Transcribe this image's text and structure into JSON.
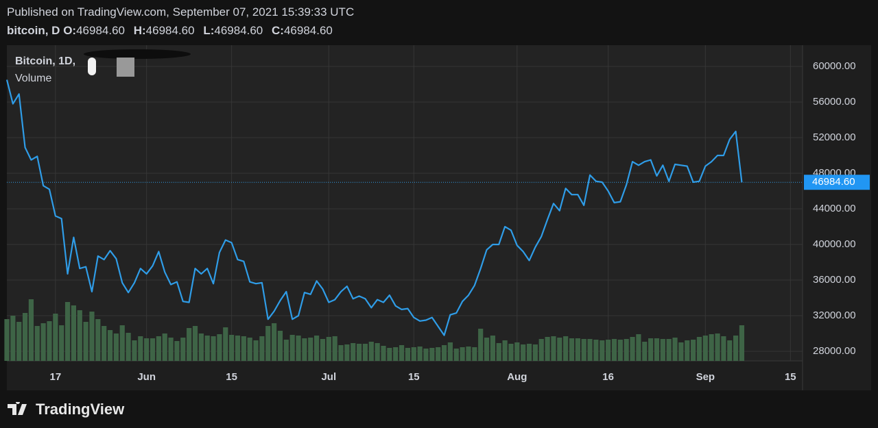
{
  "header": {
    "published": "Published on TradingView.com, September 07, 2021 15:39:33 UTC",
    "symbol": "bitcoin, D",
    "ohlc": [
      {
        "label": "O:",
        "value": "46984.60"
      },
      {
        "label": "H:",
        "value": "46984.60"
      },
      {
        "label": "L:",
        "value": "46984.60"
      },
      {
        "label": "C:",
        "value": "46984.60"
      }
    ]
  },
  "footer": {
    "brand": "TradingView"
  },
  "chart_data": {
    "type": "line",
    "categories": [
      "May 9",
      "May 10",
      "May 11",
      "May 12",
      "May 13",
      "May 14",
      "May 15",
      "May 16",
      "May 17",
      "May 18",
      "May 19",
      "May 20",
      "May 21",
      "May 22",
      "May 23",
      "May 24",
      "May 25",
      "May 26",
      "May 27",
      "May 28",
      "May 29",
      "May 30",
      "May 31",
      "Jun 1",
      "Jun 2",
      "Jun 3",
      "Jun 4",
      "Jun 5",
      "Jun 6",
      "Jun 7",
      "Jun 8",
      "Jun 9",
      "Jun 10",
      "Jun 11",
      "Jun 12",
      "Jun 13",
      "Jun 14",
      "Jun 15",
      "Jun 16",
      "Jun 17",
      "Jun 18",
      "Jun 19",
      "Jun 20",
      "Jun 21",
      "Jun 22",
      "Jun 23",
      "Jun 24",
      "Jun 25",
      "Jun 26",
      "Jun 27",
      "Jun 28",
      "Jun 29",
      "Jun 30",
      "Jul 1",
      "Jul 2",
      "Jul 3",
      "Jul 4",
      "Jul 5",
      "Jul 6",
      "Jul 7",
      "Jul 8",
      "Jul 9",
      "Jul 10",
      "Jul 11",
      "Jul 12",
      "Jul 13",
      "Jul 14",
      "Jul 15",
      "Jul 16",
      "Jul 17",
      "Jul 18",
      "Jul 19",
      "Jul 20",
      "Jul 21",
      "Jul 22",
      "Jul 23",
      "Jul 24",
      "Jul 25",
      "Jul 26",
      "Jul 27",
      "Jul 28",
      "Jul 29",
      "Jul 30",
      "Jul 31",
      "Aug 1",
      "Aug 2",
      "Aug 3",
      "Aug 4",
      "Aug 5",
      "Aug 6",
      "Aug 7",
      "Aug 8",
      "Aug 9",
      "Aug 10",
      "Aug 11",
      "Aug 12",
      "Aug 13",
      "Aug 14",
      "Aug 15",
      "Aug 16",
      "Aug 17",
      "Aug 18",
      "Aug 19",
      "Aug 20",
      "Aug 21",
      "Aug 22",
      "Aug 23",
      "Aug 24",
      "Aug 25",
      "Aug 26",
      "Aug 27",
      "Aug 28",
      "Aug 29",
      "Aug 30",
      "Aug 31",
      "Sep 1",
      "Sep 2",
      "Sep 3",
      "Sep 4",
      "Sep 5",
      "Sep 6",
      "Sep 7"
    ],
    "series": [
      {
        "name": "Bitcoin, 1D,",
        "color": "#2f9de8",
        "values": [
          58500,
          55800,
          56900,
          50900,
          49500,
          49900,
          46600,
          46200,
          43200,
          42900,
          36700,
          40800,
          37300,
          37500,
          34700,
          38700,
          38300,
          39300,
          38400,
          35700,
          34600,
          35700,
          37300,
          36700,
          37600,
          39200,
          36900,
          35500,
          35800,
          33600,
          33500,
          37300,
          36700,
          37300,
          35600,
          39100,
          40500,
          40200,
          38300,
          38100,
          35800,
          35600,
          35700,
          31600,
          32500,
          33700,
          34700,
          31600,
          32000,
          34600,
          34400,
          35900,
          35000,
          33500,
          33800,
          34700,
          35300,
          33900,
          34200,
          33900,
          32900,
          33800,
          33500,
          34300,
          33100,
          32700,
          32800,
          31800,
          31400,
          31500,
          31800,
          30800,
          29800,
          32100,
          32300,
          33600,
          34300,
          35400,
          37300,
          39400,
          40000,
          40000,
          42000,
          41600,
          39900,
          39200,
          38200,
          39700,
          40900,
          42800,
          44600,
          43800,
          46300,
          45600,
          45600,
          44400,
          47800,
          47100,
          47000,
          46000,
          44700,
          44800,
          46700,
          49300,
          48900,
          49300,
          49500,
          47700,
          48900,
          47100,
          49000,
          48900,
          48800,
          47000,
          47100,
          48800,
          49300,
          50000,
          50000,
          51800,
          52700,
          46984.6
        ]
      },
      {
        "name": "Volume",
        "type": "bar",
        "axis": "volume",
        "color": "#3e6446",
        "values": [
          61,
          66,
          57,
          70,
          90,
          51,
          55,
          58,
          69,
          52,
          86,
          81,
          74,
          57,
          72,
          61,
          51,
          45,
          40,
          52,
          41,
          30,
          36,
          33,
          33,
          36,
          40,
          34,
          29,
          34,
          48,
          51,
          40,
          37,
          36,
          39,
          49,
          38,
          37,
          36,
          34,
          30,
          36,
          51,
          55,
          44,
          31,
          38,
          37,
          33,
          34,
          37,
          32,
          35,
          36,
          23,
          24,
          26,
          25,
          25,
          28,
          26,
          22,
          19,
          20,
          23,
          19,
          20,
          21,
          18,
          19,
          20,
          23,
          27,
          18,
          20,
          21,
          20,
          47,
          34,
          37,
          26,
          30,
          25,
          27,
          24,
          25,
          24,
          32,
          35,
          36,
          34,
          36,
          33,
          33,
          32,
          32,
          31,
          30,
          31,
          32,
          31,
          32,
          35,
          39,
          28,
          33,
          33,
          32,
          32,
          34,
          27,
          30,
          31,
          35,
          37,
          39,
          40,
          36,
          30,
          37,
          52
        ]
      }
    ],
    "xlim": [
      "May 9",
      "Sep 17"
    ],
    "xticks": [
      {
        "value": "May 17",
        "label": "17"
      },
      {
        "value": "Jun 1",
        "label": "Jun"
      },
      {
        "value": "Jun 15",
        "label": "15"
      },
      {
        "value": "Jul 1",
        "label": "Jul"
      },
      {
        "value": "Jul 15",
        "label": "15"
      },
      {
        "value": "Aug 1",
        "label": "Aug"
      },
      {
        "value": "Aug 16",
        "label": "16"
      },
      {
        "value": "Sep 1",
        "label": "Sep"
      },
      {
        "value": "Sep 15",
        "label": "15"
      }
    ],
    "ylim": [
      26923,
      62385
    ],
    "yticks": [
      {
        "value": 28000,
        "label": "28000.00"
      },
      {
        "value": 32000,
        "label": "32000.00"
      },
      {
        "value": 36000,
        "label": "36000.00"
      },
      {
        "value": 40000,
        "label": "40000.00"
      },
      {
        "value": 44000,
        "label": "44000.00"
      },
      {
        "value": 48000,
        "label": "48000.00"
      },
      {
        "value": 52000,
        "label": "52000.00"
      },
      {
        "value": 56000,
        "label": "56000.00"
      },
      {
        "value": 60000,
        "label": "60000.00"
      }
    ],
    "volume_lim": [
      0,
      100
    ],
    "last_label": {
      "value": 46984.6,
      "label": "46984.60"
    },
    "grid": true
  }
}
